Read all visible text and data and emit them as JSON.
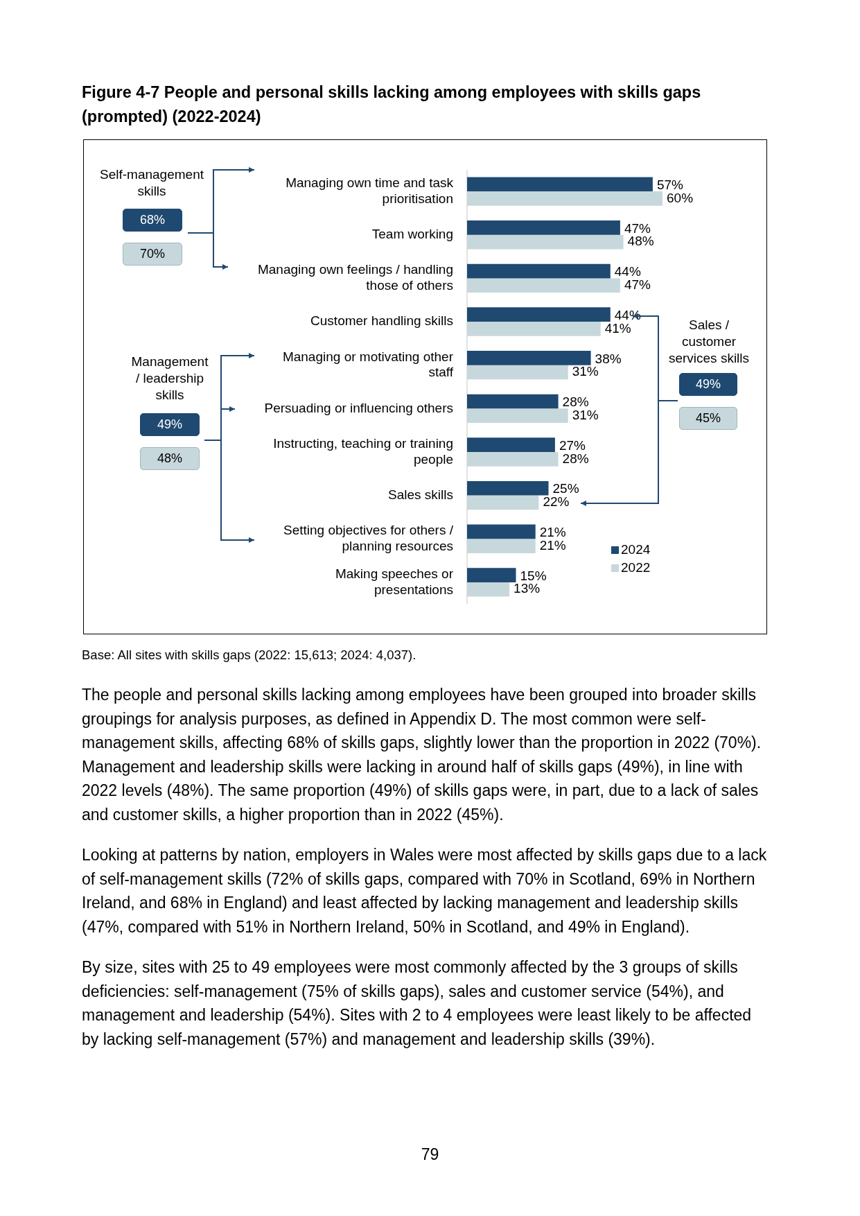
{
  "chart_data": {
    "type": "bar",
    "orientation": "horizontal",
    "title": "Figure 4-7 People and personal skills lacking among employees with skills gaps (prompted) (2022-2024)",
    "categories": [
      "Managing own time and task prioritisation",
      "Team working",
      "Managing own feelings / handling those of others",
      "Customer handling skills",
      "Managing or motivating other staff",
      "Persuading or influencing others",
      "Instructing, teaching or training people",
      "Sales skills",
      "Setting objectives for others / planning resources",
      "Making speeches or presentations"
    ],
    "series": [
      {
        "name": "2024",
        "color": "#1f4970",
        "values": [
          57,
          47,
          44,
          44,
          38,
          28,
          27,
          25,
          21,
          15
        ],
        "value_labels": [
          "57%",
          "47%",
          "44%",
          "44%",
          "38%",
          "28%",
          "27%",
          "25%",
          "21%",
          "15%"
        ]
      },
      {
        "name": "2022",
        "color": "#c7d8dc",
        "values": [
          60,
          48,
          47,
          41,
          31,
          31,
          28,
          22,
          21,
          13
        ],
        "value_labels": [
          "60%",
          "48%",
          "47%",
          "41%",
          "31%",
          "31%",
          "28%",
          "22%",
          "21%",
          "13%"
        ]
      }
    ],
    "tick_labels": "y",
    "legend": "bottom right",
    "grid": false,
    "annotations": [
      "Self-management skills",
      "68%",
      "70%",
      "Management / leadership skills",
      "49%",
      "48%",
      "Sales / customer services skills",
      "49%",
      "45%",
      "Base: All sites with skills gaps (2022: 15,613; 2024: 4,037).",
      "The people and personal skills lacking among employees have been grouped into broader skills groupings for analysis purposes, as defined in Appendix D. The most common were self-management skills, affecting 68% of skills gaps, slightly lower than the proportion in 2022 (70%). Management and leadership skills were lacking in around half of skills gaps (49%), in line with 2022 levels (48%). The same proportion (49%) of skills gaps were, in part, due to a lack of sales and customer skills, a higher proportion than in 2022 (45%).",
      "Looking at patterns by nation, employers in Wales were most affected by skills gaps due to a lack of self-management skills (72% of skills gaps, compared with 70% in Scotland, 69% in Northern Ireland, and 68% in England) and least affected by lacking management and leadership skills (47%, compared with 51% in Northern Ireland, 50% in Scotland, and 49% in England).",
      "By size, sites with 25 to 49 employees were most commonly affected by the 3 groups of skills deficiencies: self-management (75% of skills gaps), sales and customer service (54%), and management and leadership (54%). Sites with 2 to 4 employees were least likely to be affected by lacking self-management (57%) and management and leadership skills (39%).",
      "79"
    ]
  }
}
